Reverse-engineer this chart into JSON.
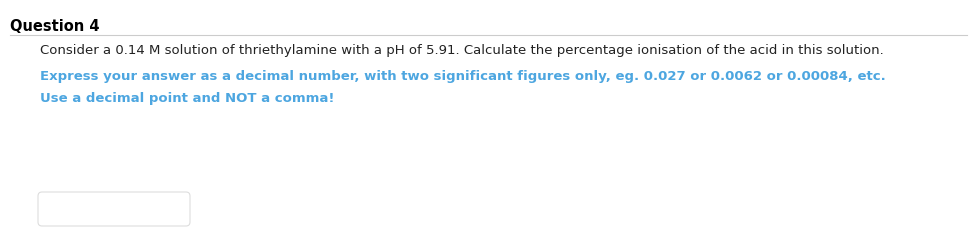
{
  "title": "Question 4",
  "title_fontsize": 10.5,
  "title_fontweight": "bold",
  "body_text": "Consider a 0.14 M solution of thriethylamine with a pH of 5.91. Calculate the percentage ionisation of the acid in this solution.",
  "body_fontsize": 9.5,
  "body_color": "#222222",
  "blue_line1": "Express your answer as a decimal number, with two significant figures only, eg. 0.027 or 0.0062 or 0.00084, etc.",
  "blue_line2": "Use a decimal point and NOT a comma!",
  "blue_color": "#4da6e0",
  "blue_fontsize": 9.5,
  "background_color": "#ffffff",
  "divider_color": "#cccccc",
  "box_color": "#dddddd"
}
